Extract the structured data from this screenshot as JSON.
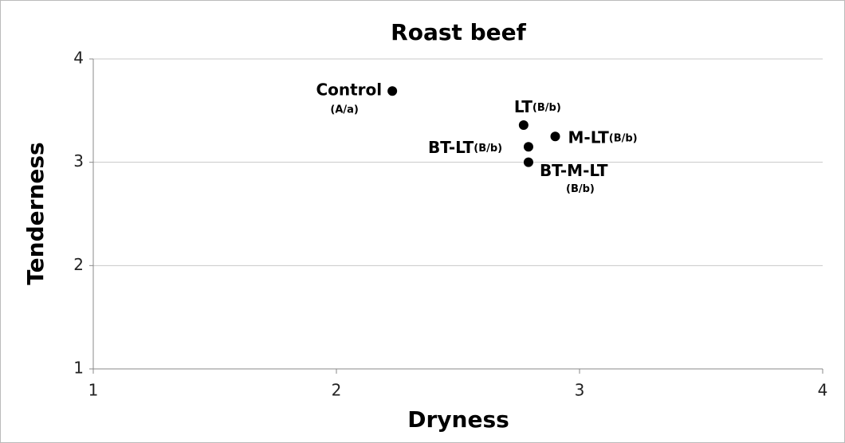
{
  "chart_data": {
    "type": "scatter",
    "title": "Roast beef",
    "x_label": "Dryness",
    "y_label": "Tenderness",
    "x": [
      2.23,
      2.77,
      2.9,
      2.79,
      2.79
    ],
    "y": [
      3.69,
      3.36,
      3.25,
      3.15,
      3.0
    ],
    "point_labels": [
      "Control",
      "LT",
      "M-LT",
      "BT-LT",
      "BT-M-LT"
    ],
    "group_labels": [
      "(A/a)",
      "(B/b)",
      "(B/b)",
      "(B/b)",
      "(B/b)"
    ],
    "color": "#000000",
    "xlim": [
      1,
      4
    ],
    "xticks": [
      1,
      2,
      3,
      4
    ],
    "ylim": [
      1,
      4
    ],
    "yticks": [
      1,
      2,
      3,
      4
    ],
    "grid": true
  }
}
